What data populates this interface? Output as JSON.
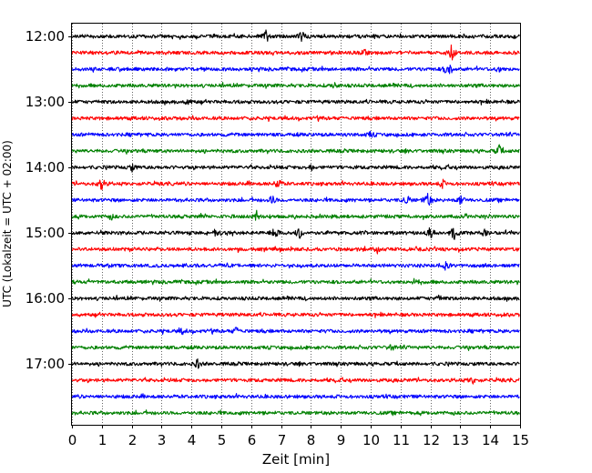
{
  "chart_data": {
    "type": "line",
    "title": "",
    "xlabel": "Zeit  [min]",
    "ylabel": "UTC (Lokalzeit = UTC + 02:00)",
    "xlim": [
      0,
      15
    ],
    "x_ticks": [
      "0",
      "1",
      "2",
      "3",
      "4",
      "5",
      "6",
      "7",
      "8",
      "9",
      "10",
      "11",
      "12",
      "13",
      "14",
      "15"
    ],
    "y_tick_labels": [
      "12:00",
      "13:00",
      "14:00",
      "15:00",
      "16:00",
      "17:00"
    ],
    "trace_interval_min": 15,
    "grid": "vertical dotted lines at every minute",
    "trace_colors": [
      "#000000",
      "#ff0000",
      "#0000ff",
      "#008000"
    ],
    "series": [
      {
        "start": "12:00",
        "events": [
          [
            6.5,
            7
          ],
          [
            7.7,
            6
          ]
        ]
      },
      {
        "start": "12:15",
        "events": [
          [
            12.7,
            10
          ],
          [
            9.8,
            3
          ]
        ]
      },
      {
        "start": "12:30",
        "events": [
          [
            12.6,
            12
          ],
          [
            14.3,
            3
          ]
        ]
      },
      {
        "start": "12:45",
        "events": [
          [
            8.8,
            3
          ]
        ]
      },
      {
        "start": "13:00",
        "events": [
          [
            3.9,
            4
          ]
        ]
      },
      {
        "start": "13:15",
        "events": []
      },
      {
        "start": "13:30",
        "events": [
          [
            10.0,
            3
          ]
        ]
      },
      {
        "start": "13:45",
        "events": [
          [
            14.3,
            6
          ]
        ]
      },
      {
        "start": "14:00",
        "events": [
          [
            2.0,
            4
          ],
          [
            8.0,
            3
          ]
        ]
      },
      {
        "start": "14:15",
        "events": [
          [
            1.0,
            8
          ],
          [
            6.9,
            7
          ],
          [
            12.4,
            4
          ]
        ]
      },
      {
        "start": "14:30",
        "events": [
          [
            6.7,
            5
          ],
          [
            11.2,
            6
          ],
          [
            11.9,
            10
          ],
          [
            13.0,
            5
          ]
        ]
      },
      {
        "start": "14:45",
        "events": [
          [
            6.2,
            7
          ],
          [
            1.3,
            3
          ]
        ]
      },
      {
        "start": "15:00",
        "events": [
          [
            4.8,
            4
          ],
          [
            6.8,
            8
          ],
          [
            7.6,
            7
          ],
          [
            12.0,
            7
          ],
          [
            12.8,
            9
          ],
          [
            13.8,
            3
          ]
        ]
      },
      {
        "start": "15:15",
        "events": [
          [
            10.2,
            7
          ]
        ]
      },
      {
        "start": "15:30",
        "events": [
          [
            12.5,
            4
          ]
        ]
      },
      {
        "start": "15:45",
        "events": [
          [
            11.5,
            4
          ]
        ]
      },
      {
        "start": "16:00",
        "events": [
          [
            12.3,
            3
          ]
        ]
      },
      {
        "start": "16:15",
        "events": []
      },
      {
        "start": "16:30",
        "events": [
          [
            5.5,
            4
          ],
          [
            3.7,
            3
          ]
        ]
      },
      {
        "start": "16:45",
        "events": [
          [
            10.7,
            3
          ]
        ]
      },
      {
        "start": "17:00",
        "events": [
          [
            4.2,
            5
          ]
        ]
      },
      {
        "start": "17:15",
        "events": [
          [
            13.4,
            4
          ]
        ]
      },
      {
        "start": "17:30",
        "events": []
      },
      {
        "start": "17:45",
        "events": []
      }
    ]
  }
}
